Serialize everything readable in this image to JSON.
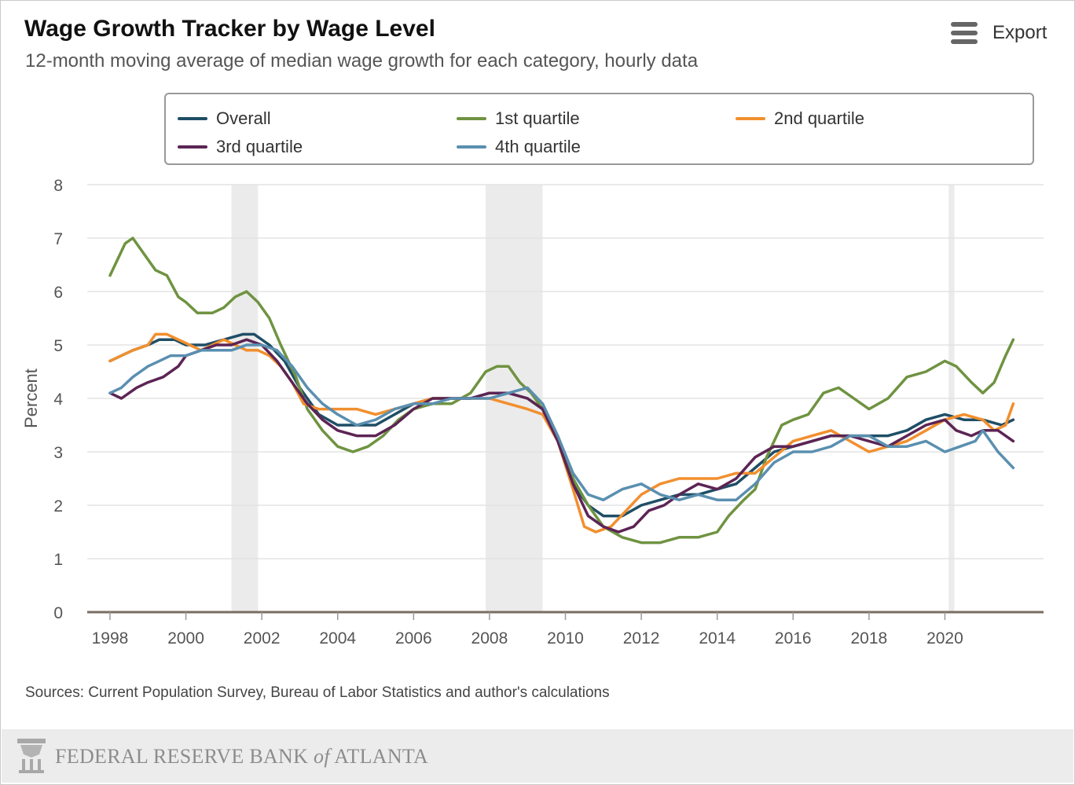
{
  "header": {
    "title": "Wage Growth Tracker by Wage Level",
    "subtitle": "12-month moving average of median wage growth for each category, hourly data",
    "export_label": "Export",
    "export_icon": "hamburger-menu-icon"
  },
  "footer": {
    "source": "Sources: Current Population Survey, Bureau of Labor Statistics and author's calculations",
    "bank_name_1": "FEDERAL RESERVE BANK",
    "bank_name_of": "of",
    "bank_name_2": "ATLANTA",
    "logo_icon": "eagle-seal-icon"
  },
  "chart_data": {
    "type": "line",
    "title": "Wage Growth Tracker by Wage Level",
    "ylabel": "Percent",
    "xlabel": "",
    "ylim": [
      0,
      8
    ],
    "xlim": [
      1997.4,
      2022.6
    ],
    "yticks": [
      "0",
      "1",
      "2",
      "3",
      "4",
      "5",
      "6",
      "7",
      "8"
    ],
    "xticks": [
      "1998",
      "2000",
      "2002",
      "2004",
      "2006",
      "2008",
      "2010",
      "2012",
      "2014",
      "2016",
      "2018",
      "2020"
    ],
    "grid": true,
    "legend_position": "top",
    "recessions": [
      [
        2001.2,
        2001.9
      ],
      [
        2007.9,
        2009.4
      ],
      [
        2020.1,
        2020.25
      ]
    ],
    "series": [
      {
        "name": "Overall",
        "color": "#1f4e66",
        "x": [
          1998,
          1998.3,
          1998.6,
          1999,
          1999.3,
          1999.7,
          2000,
          2000.5,
          2001,
          2001.5,
          2001.8,
          2002.2,
          2002.6,
          2003,
          2003.5,
          2004,
          2004.5,
          2005,
          2005.5,
          2006,
          2006.5,
          2007,
          2007.5,
          2008,
          2008.5,
          2009,
          2009.4,
          2009.8,
          2010.2,
          2010.6,
          2011,
          2011.5,
          2012,
          2012.5,
          2013,
          2013.5,
          2014,
          2014.5,
          2015,
          2015.5,
          2016,
          2016.5,
          2017,
          2017.5,
          2018,
          2018.5,
          2019,
          2019.5,
          2020,
          2020.5,
          2021,
          2021.5,
          2021.8
        ],
        "y": [
          4.7,
          4.8,
          4.9,
          5.0,
          5.1,
          5.1,
          5.0,
          5.0,
          5.1,
          5.2,
          5.2,
          5.0,
          4.7,
          4.2,
          3.7,
          3.5,
          3.5,
          3.5,
          3.7,
          3.9,
          4.0,
          4.0,
          4.0,
          4.1,
          4.1,
          4.0,
          3.8,
          3.2,
          2.4,
          2.0,
          1.8,
          1.8,
          2.0,
          2.1,
          2.2,
          2.2,
          2.3,
          2.4,
          2.7,
          3.0,
          3.1,
          3.2,
          3.3,
          3.3,
          3.3,
          3.3,
          3.4,
          3.6,
          3.7,
          3.6,
          3.6,
          3.5,
          3.6
        ]
      },
      {
        "name": "1st quartile",
        "color": "#6f9341",
        "x": [
          1998,
          1998.2,
          1998.4,
          1998.6,
          1998.9,
          1999.2,
          1999.5,
          1999.8,
          2000,
          2000.3,
          2000.7,
          2001,
          2001.3,
          2001.6,
          2001.9,
          2002.2,
          2002.5,
          2002.9,
          2003.2,
          2003.6,
          2004,
          2004.4,
          2004.8,
          2005.2,
          2005.6,
          2006,
          2006.5,
          2007,
          2007.5,
          2007.9,
          2008.2,
          2008.5,
          2008.8,
          2009.1,
          2009.4,
          2009.8,
          2010.2,
          2010.6,
          2011,
          2011.5,
          2012,
          2012.5,
          2013,
          2013.5,
          2014,
          2014.3,
          2014.7,
          2015,
          2015.3,
          2015.7,
          2016,
          2016.4,
          2016.8,
          2017.2,
          2017.6,
          2018,
          2018.5,
          2019,
          2019.5,
          2020,
          2020.3,
          2020.7,
          2021,
          2021.3,
          2021.6,
          2021.8
        ],
        "y": [
          6.3,
          6.6,
          6.9,
          7.0,
          6.7,
          6.4,
          6.3,
          5.9,
          5.8,
          5.6,
          5.6,
          5.7,
          5.9,
          6.0,
          5.8,
          5.5,
          5.0,
          4.4,
          3.8,
          3.4,
          3.1,
          3.0,
          3.1,
          3.3,
          3.6,
          3.8,
          3.9,
          3.9,
          4.1,
          4.5,
          4.6,
          4.6,
          4.3,
          4.1,
          3.8,
          3.3,
          2.5,
          2.0,
          1.6,
          1.4,
          1.3,
          1.3,
          1.4,
          1.4,
          1.5,
          1.8,
          2.1,
          2.3,
          2.9,
          3.5,
          3.6,
          3.7,
          4.1,
          4.2,
          4.0,
          3.8,
          4.0,
          4.4,
          4.5,
          4.7,
          4.6,
          4.3,
          4.1,
          4.3,
          4.8,
          5.1
        ]
      },
      {
        "name": "2nd quartile",
        "color": "#f18f2e",
        "x": [
          1998,
          1998.3,
          1998.6,
          1999,
          1999.2,
          1999.5,
          1999.8,
          2000.1,
          2000.4,
          2000.7,
          2001,
          2001.3,
          2001.6,
          2001.9,
          2002.2,
          2002.5,
          2002.8,
          2003.1,
          2003.5,
          2004,
          2004.5,
          2005,
          2005.5,
          2006,
          2006.5,
          2007,
          2007.5,
          2008,
          2008.5,
          2009,
          2009.4,
          2009.8,
          2010.2,
          2010.5,
          2010.8,
          2011.2,
          2011.6,
          2012,
          2012.5,
          2013,
          2013.5,
          2014,
          2014.5,
          2015,
          2015.5,
          2016,
          2016.5,
          2017,
          2017.5,
          2018,
          2018.5,
          2019,
          2019.5,
          2020,
          2020.5,
          2021,
          2021.3,
          2021.6,
          2021.8
        ],
        "y": [
          4.7,
          4.8,
          4.9,
          5.0,
          5.2,
          5.2,
          5.1,
          5.0,
          4.9,
          5.0,
          5.1,
          5.0,
          4.9,
          4.9,
          4.8,
          4.6,
          4.3,
          3.9,
          3.8,
          3.8,
          3.8,
          3.7,
          3.8,
          3.9,
          4.0,
          4.0,
          4.0,
          4.0,
          3.9,
          3.8,
          3.7,
          3.2,
          2.3,
          1.6,
          1.5,
          1.6,
          1.9,
          2.2,
          2.4,
          2.5,
          2.5,
          2.5,
          2.6,
          2.6,
          2.9,
          3.2,
          3.3,
          3.4,
          3.2,
          3.0,
          3.1,
          3.2,
          3.4,
          3.6,
          3.7,
          3.6,
          3.4,
          3.5,
          3.9
        ]
      },
      {
        "name": "3rd quartile",
        "color": "#5c2454",
        "x": [
          1998,
          1998.3,
          1998.7,
          1999,
          1999.4,
          1999.8,
          2000,
          2000.4,
          2000.8,
          2001.2,
          2001.6,
          2002,
          2002.4,
          2002.8,
          2003.2,
          2003.6,
          2004,
          2004.5,
          2005,
          2005.5,
          2006,
          2006.5,
          2007,
          2007.5,
          2008,
          2008.5,
          2009,
          2009.4,
          2009.8,
          2010.2,
          2010.6,
          2011,
          2011.4,
          2011.8,
          2012.2,
          2012.6,
          2013,
          2013.5,
          2014,
          2014.5,
          2015,
          2015.5,
          2016,
          2016.5,
          2017,
          2017.5,
          2018,
          2018.5,
          2019,
          2019.5,
          2020,
          2020.3,
          2020.7,
          2021,
          2021.4,
          2021.8
        ],
        "y": [
          4.1,
          4.0,
          4.2,
          4.3,
          4.4,
          4.6,
          4.8,
          4.9,
          5.0,
          5.0,
          5.1,
          5.0,
          4.7,
          4.3,
          3.9,
          3.6,
          3.4,
          3.3,
          3.3,
          3.5,
          3.8,
          4.0,
          4.0,
          4.0,
          4.1,
          4.1,
          4.0,
          3.8,
          3.2,
          2.4,
          1.8,
          1.6,
          1.5,
          1.6,
          1.9,
          2.0,
          2.2,
          2.4,
          2.3,
          2.5,
          2.9,
          3.1,
          3.1,
          3.2,
          3.3,
          3.3,
          3.2,
          3.1,
          3.3,
          3.5,
          3.6,
          3.4,
          3.3,
          3.4,
          3.4,
          3.2
        ]
      },
      {
        "name": "4th quartile",
        "color": "#5a8fb0",
        "x": [
          1998,
          1998.3,
          1998.6,
          1999,
          1999.3,
          1999.6,
          2000,
          2000.4,
          2000.8,
          2001.2,
          2001.6,
          2002,
          2002.4,
          2002.8,
          2003.2,
          2003.6,
          2004,
          2004.5,
          2005,
          2005.5,
          2006,
          2006.5,
          2007,
          2007.5,
          2008,
          2008.5,
          2009,
          2009.4,
          2009.8,
          2010.2,
          2010.6,
          2011,
          2011.5,
          2012,
          2012.5,
          2013,
          2013.5,
          2014,
          2014.5,
          2015,
          2015.5,
          2016,
          2016.5,
          2017,
          2017.5,
          2018,
          2018.5,
          2019,
          2019.5,
          2020,
          2020.4,
          2020.8,
          2021,
          2021.4,
          2021.8
        ],
        "y": [
          4.1,
          4.2,
          4.4,
          4.6,
          4.7,
          4.8,
          4.8,
          4.9,
          4.9,
          4.9,
          5.0,
          5.0,
          4.9,
          4.6,
          4.2,
          3.9,
          3.7,
          3.5,
          3.6,
          3.8,
          3.9,
          3.9,
          4.0,
          4.0,
          4.0,
          4.1,
          4.2,
          3.9,
          3.3,
          2.6,
          2.2,
          2.1,
          2.3,
          2.4,
          2.2,
          2.1,
          2.2,
          2.1,
          2.1,
          2.4,
          2.8,
          3.0,
          3.0,
          3.1,
          3.3,
          3.3,
          3.1,
          3.1,
          3.2,
          3.0,
          3.1,
          3.2,
          3.4,
          3.0,
          2.7
        ]
      }
    ]
  }
}
